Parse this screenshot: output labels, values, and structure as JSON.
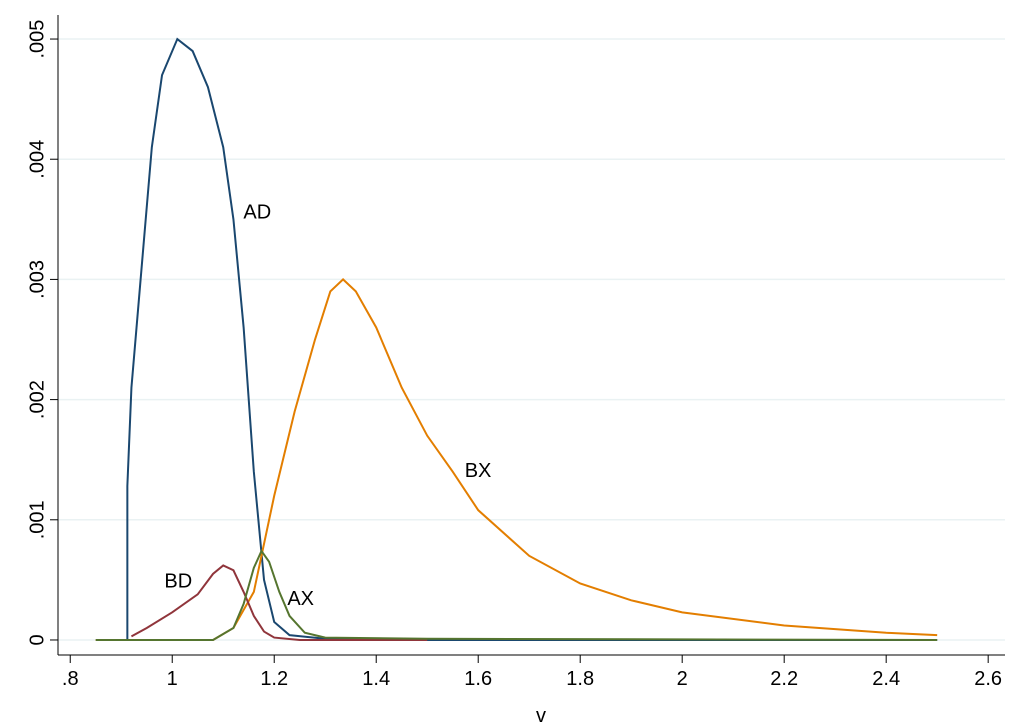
{
  "chart_data": {
    "type": "line",
    "x_label": "v",
    "xlim": [
      0.776,
      2.633
    ],
    "ylim": [
      -0.000125,
      0.0052
    ],
    "xticks": [
      {
        "value": 0.8,
        "label": ".8"
      },
      1,
      1.2,
      1.4,
      1.6,
      1.8,
      2,
      2.2,
      2.4,
      2.6
    ],
    "yticks": [
      0,
      {
        "value": 0.001,
        "label": ".001"
      },
      {
        "value": 0.002,
        "label": ".002"
      },
      {
        "value": 0.003,
        "label": ".003"
      },
      {
        "value": 0.004,
        "label": ".004"
      },
      {
        "value": 0.005,
        "label": ".005"
      }
    ],
    "grid": true,
    "series": [
      {
        "name": "AD",
        "color": "#1a476f",
        "x": [
          0.912,
          0.912,
          0.92,
          0.94,
          0.96,
          0.98,
          1.01,
          1.04,
          1.07,
          1.1,
          1.12,
          1.14,
          1.16,
          1.18,
          1.2,
          1.23,
          1.3,
          1.5,
          2.5
        ],
        "values": [
          0,
          0.00128,
          0.0021,
          0.0031,
          0.0041,
          0.0047,
          0.005,
          0.0049,
          0.0046,
          0.0041,
          0.0035,
          0.0026,
          0.0014,
          0.0005,
          0.00015,
          4e-05,
          1e-05,
          0,
          0
        ]
      },
      {
        "name": "BX",
        "color": "#e37e00",
        "x": [
          0.85,
          1.08,
          1.12,
          1.16,
          1.2,
          1.24,
          1.28,
          1.31,
          1.335,
          1.36,
          1.4,
          1.45,
          1.5,
          1.55,
          1.6,
          1.7,
          1.8,
          1.9,
          2.0,
          2.2,
          2.4,
          2.5
        ],
        "values": [
          0,
          0,
          0.0001,
          0.0004,
          0.0012,
          0.0019,
          0.0025,
          0.0029,
          0.003,
          0.0029,
          0.0026,
          0.0021,
          0.0017,
          0.0014,
          0.00108,
          0.0007,
          0.00047,
          0.00033,
          0.00023,
          0.00012,
          6e-05,
          4e-05
        ]
      },
      {
        "name": "BD",
        "color": "#90353b",
        "x": [
          0.92,
          0.95,
          1.0,
          1.05,
          1.08,
          1.1,
          1.12,
          1.14,
          1.16,
          1.18,
          1.2,
          1.25,
          1.5
        ],
        "values": [
          3e-05,
          0.0001,
          0.00023,
          0.00038,
          0.00055,
          0.00062,
          0.00058,
          0.0004,
          0.0002,
          7e-05,
          2e-05,
          0,
          0
        ]
      },
      {
        "name": "AX",
        "color": "#55752f",
        "x": [
          0.85,
          1.08,
          1.12,
          1.14,
          1.16,
          1.175,
          1.19,
          1.21,
          1.23,
          1.26,
          1.3,
          1.5,
          2.5
        ],
        "values": [
          0,
          0,
          0.0001,
          0.0003,
          0.0006,
          0.00074,
          0.00065,
          0.0004,
          0.0002,
          6e-05,
          2e-05,
          1e-05,
          0
        ]
      }
    ]
  }
}
